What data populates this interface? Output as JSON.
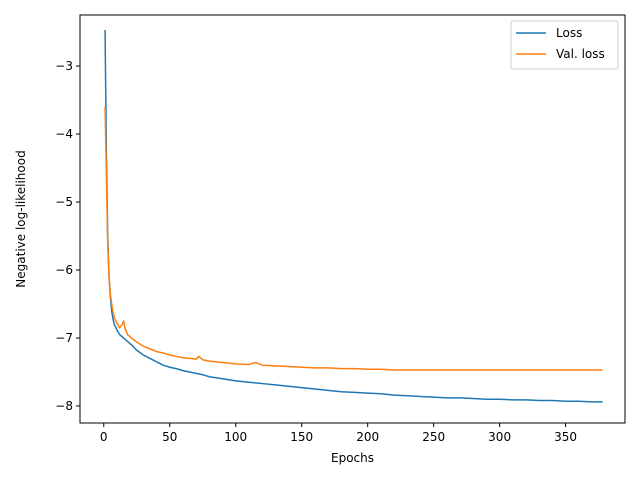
{
  "chart_data": {
    "type": "line",
    "title": "",
    "xlabel": "Epochs",
    "ylabel": "Negative log-likelihood",
    "xlim": [
      -18,
      395
    ],
    "ylim": [
      -8.25,
      -2.25
    ],
    "xticks": [
      0,
      50,
      100,
      150,
      200,
      250,
      300,
      350
    ],
    "yticks": [
      -3,
      -4,
      -5,
      -6,
      -7,
      -8
    ],
    "xtick_labels": [
      "0",
      "50",
      "100",
      "150",
      "200",
      "250",
      "300",
      "350"
    ],
    "ytick_labels": [
      "−3",
      "−4",
      "−5",
      "−6",
      "−7",
      "−8"
    ],
    "grid": false,
    "legend": {
      "position": "top-right"
    },
    "series": [
      {
        "name": "Loss",
        "color": "#1f77b4",
        "x": [
          1,
          2,
          3,
          4,
          5,
          6,
          7,
          8,
          10,
          12,
          15,
          18,
          21,
          25,
          30,
          35,
          40,
          45,
          50,
          55,
          60,
          65,
          70,
          75,
          80,
          90,
          100,
          110,
          120,
          130,
          140,
          150,
          160,
          170,
          180,
          190,
          200,
          210,
          220,
          230,
          240,
          250,
          260,
          270,
          280,
          290,
          300,
          310,
          320,
          330,
          340,
          350,
          360,
          370,
          378
        ],
        "values": [
          -2.47,
          -4.3,
          -5.5,
          -6.1,
          -6.4,
          -6.6,
          -6.72,
          -6.8,
          -6.88,
          -6.95,
          -7.0,
          -7.05,
          -7.1,
          -7.18,
          -7.25,
          -7.3,
          -7.35,
          -7.4,
          -7.43,
          -7.45,
          -7.48,
          -7.5,
          -7.52,
          -7.54,
          -7.57,
          -7.6,
          -7.63,
          -7.65,
          -7.67,
          -7.69,
          -7.71,
          -7.73,
          -7.75,
          -7.77,
          -7.79,
          -7.8,
          -7.81,
          -7.82,
          -7.84,
          -7.85,
          -7.86,
          -7.87,
          -7.88,
          -7.88,
          -7.89,
          -7.9,
          -7.9,
          -7.91,
          -7.91,
          -7.92,
          -7.92,
          -7.93,
          -7.93,
          -7.94,
          -7.94
        ]
      },
      {
        "name": "Val. loss",
        "color": "#ff7f0e",
        "x": [
          1,
          2,
          3,
          4,
          5,
          6,
          7,
          8,
          10,
          12,
          14,
          15,
          16,
          18,
          21,
          25,
          30,
          35,
          40,
          45,
          50,
          55,
          60,
          65,
          70,
          72,
          75,
          80,
          90,
          100,
          110,
          115,
          120,
          130,
          140,
          150,
          160,
          170,
          180,
          190,
          200,
          210,
          220,
          230,
          240,
          250,
          260,
          270,
          280,
          290,
          300,
          310,
          320,
          330,
          340,
          350,
          360,
          370,
          378
        ],
        "values": [
          -3.6,
          -4.6,
          -5.6,
          -6.1,
          -6.35,
          -6.5,
          -6.62,
          -6.7,
          -6.78,
          -6.85,
          -6.8,
          -6.75,
          -6.85,
          -6.95,
          -7.0,
          -7.06,
          -7.12,
          -7.16,
          -7.2,
          -7.22,
          -7.25,
          -7.27,
          -7.29,
          -7.3,
          -7.31,
          -7.27,
          -7.32,
          -7.34,
          -7.36,
          -7.38,
          -7.39,
          -7.36,
          -7.4,
          -7.41,
          -7.42,
          -7.43,
          -7.44,
          -7.44,
          -7.45,
          -7.45,
          -7.46,
          -7.46,
          -7.47,
          -7.47,
          -7.47,
          -7.47,
          -7.47,
          -7.47,
          -7.47,
          -7.47,
          -7.47,
          -7.47,
          -7.47,
          -7.47,
          -7.47,
          -7.47,
          -7.47,
          -7.47,
          -7.47
        ]
      }
    ]
  }
}
